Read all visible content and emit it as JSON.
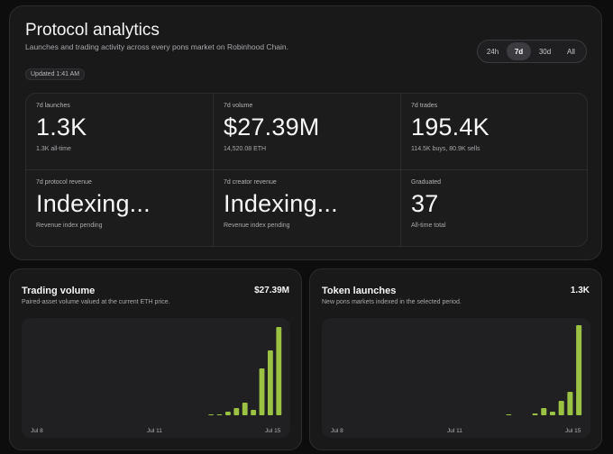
{
  "header": {
    "title": "Protocol analytics",
    "subtitle": "Launches and trading activity across every pons market on Robinhood Chain.",
    "updated": "Updated 1:41 AM"
  },
  "range": {
    "options": [
      "24h",
      "7d",
      "30d",
      "All"
    ],
    "selected": "7d"
  },
  "stats": [
    {
      "label": "7d launches",
      "value": "1.3K",
      "sub": "1.3K all-time"
    },
    {
      "label": "7d volume",
      "value": "$27.39M",
      "sub": "14,520.08 ETH"
    },
    {
      "label": "7d trades",
      "value": "195.4K",
      "sub": "114.5K buys, 80.9K sells"
    },
    {
      "label": "7d protocol revenue",
      "value": "Indexing...",
      "sub": "Revenue index pending"
    },
    {
      "label": "7d creator revenue",
      "value": "Indexing...",
      "sub": "Revenue index pending"
    },
    {
      "label": "Graduated",
      "value": "37",
      "sub": "All-time total"
    }
  ],
  "colors": {
    "bar": "#9bc242",
    "accent_active": "#3c3c40"
  },
  "charts": {
    "volume": {
      "title": "Trading volume",
      "total": "$27.39M",
      "desc": "Paired-asset volume valued at the current ETH price."
    },
    "launches": {
      "title": "Token launches",
      "total": "1.3K",
      "desc": "New pons markets indexed in the selected period."
    }
  },
  "chart_data": [
    {
      "type": "bar",
      "title": "Trading volume",
      "x_ticks": [
        "Jul 8",
        "Jul 11",
        "Jul 15"
      ],
      "y_min": 0,
      "y_max": 100,
      "values": [
        0,
        0,
        0,
        0,
        0,
        0,
        0,
        0,
        0,
        0,
        0,
        0,
        0,
        0,
        0,
        0,
        0,
        0,
        0,
        0,
        0,
        1,
        1,
        4,
        8,
        14,
        6,
        52,
        72,
        98
      ],
      "grid": false
    },
    {
      "type": "bar",
      "title": "Token launches",
      "x_ticks": [
        "Jul 8",
        "Jul 11",
        "Jul 15"
      ],
      "y_min": 0,
      "y_max": 100,
      "values": [
        0,
        0,
        0,
        0,
        0,
        0,
        0,
        0,
        0,
        0,
        0,
        0,
        0,
        0,
        0,
        0,
        0,
        0,
        0,
        0,
        1,
        0,
        0,
        2,
        8,
        4,
        16,
        26,
        100
      ],
      "grid": false
    }
  ]
}
